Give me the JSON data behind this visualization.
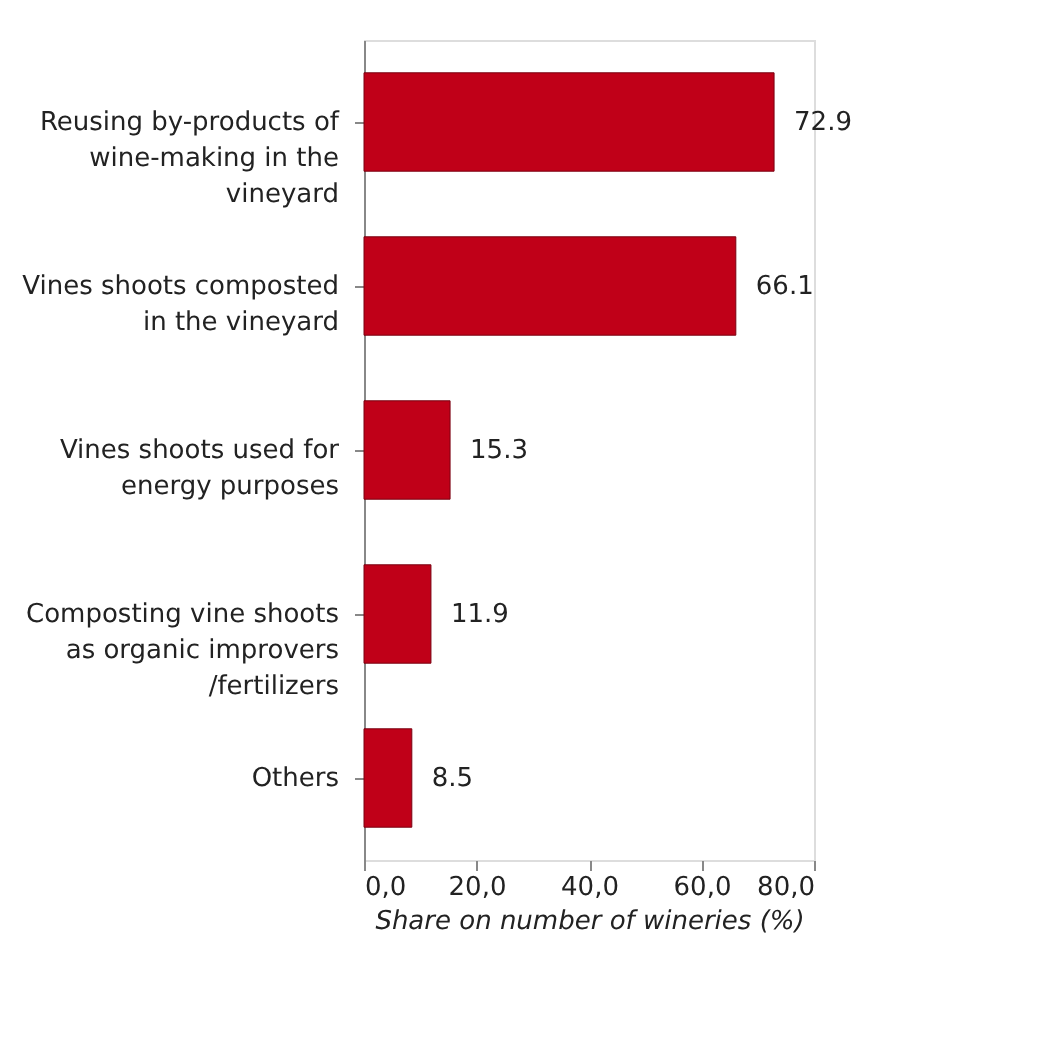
{
  "chart_data": {
    "type": "bar",
    "orientation": "horizontal",
    "xlabel": "Share  on number of wineries (%)",
    "categories": [
      "Reusing by-products of wine-making in the vineyard",
      "Vines shoots composted in the vineyard",
      "Vines shoots used for energy purposes",
      "Composting vine shoots as organic improvers /fertilizers",
      "Others"
    ],
    "values": [
      72.9,
      66.1,
      15.3,
      11.9,
      8.5
    ],
    "color": "#c00018",
    "data_labels": true,
    "xlim": [
      0,
      80
    ],
    "xticks": [
      {
        "value": 0,
        "label": "0,0"
      },
      {
        "value": 20,
        "label": "20,0"
      },
      {
        "value": 40,
        "label": "40,0"
      },
      {
        "value": 60,
        "label": "60,0"
      },
      {
        "value": 80,
        "label": "80,0"
      }
    ],
    "grid": false
  }
}
